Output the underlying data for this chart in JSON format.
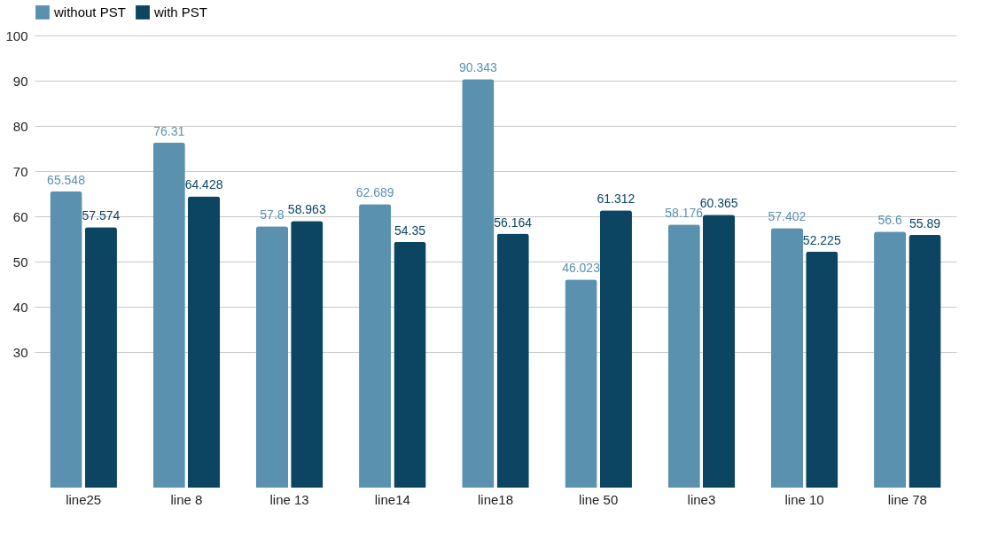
{
  "chart_data": {
    "type": "bar",
    "categories": [
      "line25",
      "line 8",
      "line 13",
      "line14",
      "line18",
      "line 50",
      "line3",
      "line 10",
      "line 78"
    ],
    "series": [
      {
        "name": "without PST",
        "color": "#5a91af",
        "values": [
          65.548,
          76.31,
          57.8,
          62.689,
          90.343,
          46.023,
          58.176,
          57.402,
          56.6
        ]
      },
      {
        "name": "with PST",
        "color": "#0b4562",
        "values": [
          57.574,
          64.428,
          58.963,
          54.35,
          56.164,
          61.312,
          60.365,
          52.225,
          55.89
        ]
      }
    ],
    "ylim": [
      0,
      100
    ],
    "yticks": [
      30,
      40,
      50,
      60,
      70,
      80,
      90,
      100
    ],
    "grid": "y",
    "legend": "top",
    "data_labels": true
  }
}
